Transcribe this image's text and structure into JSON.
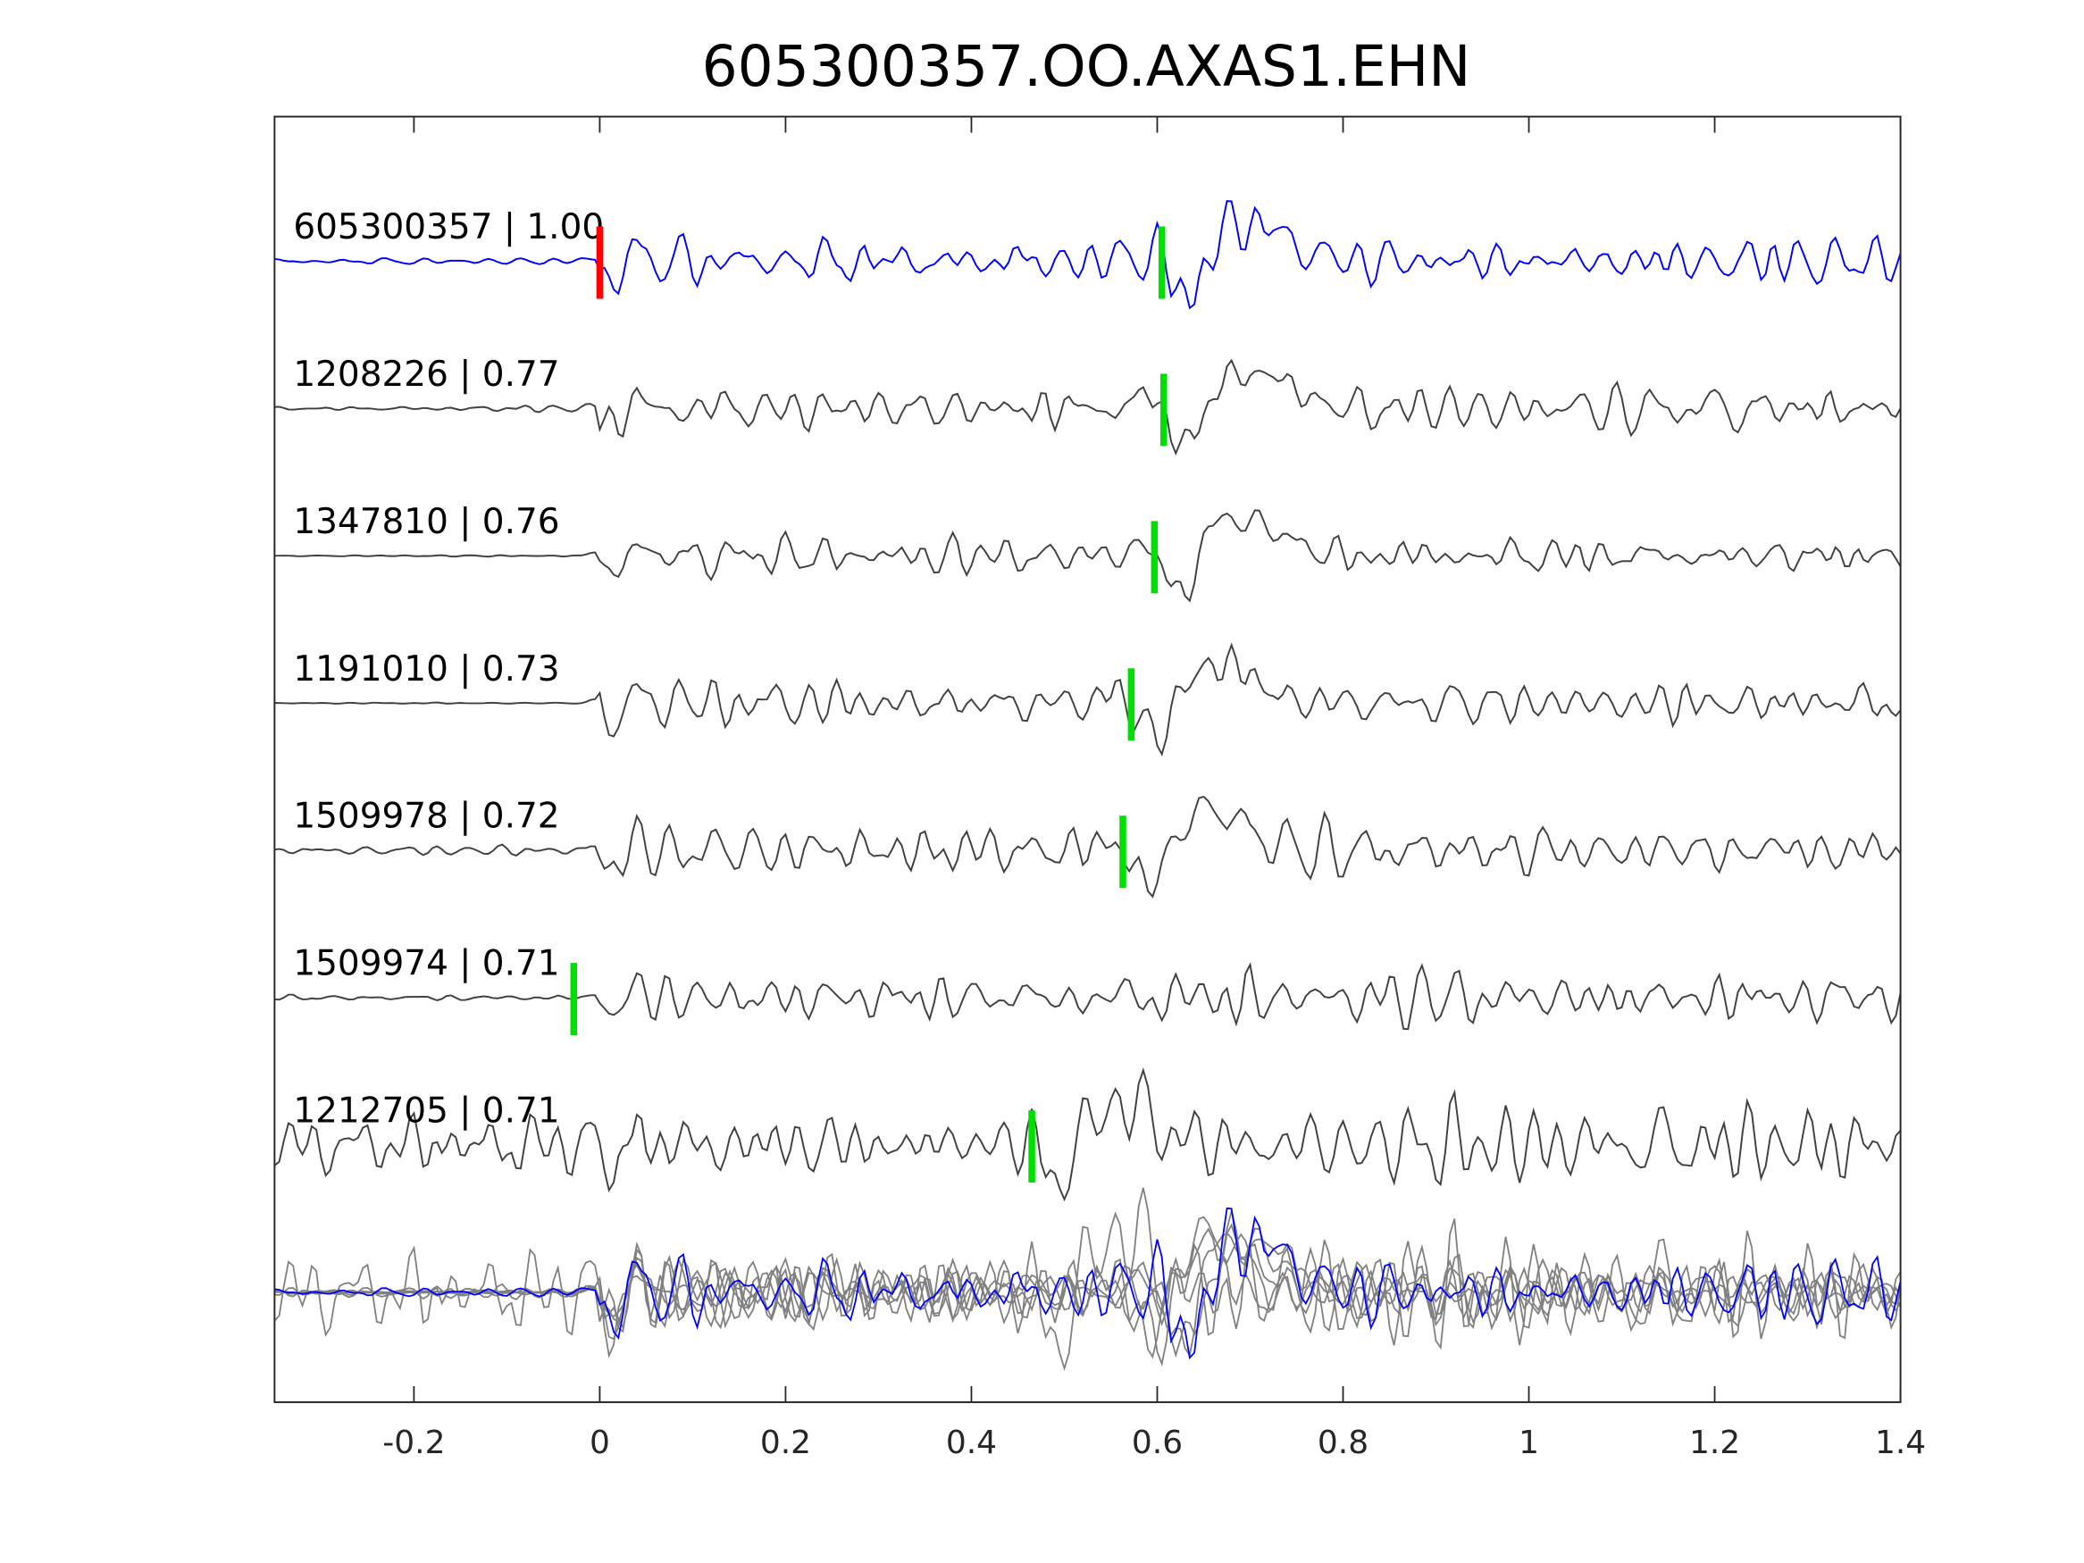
{
  "chart_data": {
    "type": "line",
    "title": "605300357.OO.AXAS1.EHN",
    "xlabel": "",
    "ylabel": "",
    "xlim": [
      -0.35,
      1.4
    ],
    "xticks": [
      -0.2,
      0,
      0.2,
      0.4,
      0.6,
      0.8,
      1,
      1.2,
      1.4
    ],
    "xtick_labels": [
      "-0.2",
      "0",
      "0.2",
      "0.4",
      "0.6",
      "0.8",
      "1",
      "1.2",
      "1.4"
    ],
    "grid": false,
    "traces": [
      {
        "label": "605300357 | 1.00",
        "color": "#0000ff",
        "pick_time": 0.0,
        "pick_color": "#ff0000",
        "second_pick": 0.605,
        "seed": 11,
        "noise": 0.25
      },
      {
        "label": "1208226 | 0.77",
        "color": "#404040",
        "pick_time": 0.607,
        "pick_color": "#00e000",
        "seed": 23,
        "noise": 0.2
      },
      {
        "label": "1347810 | 0.76",
        "color": "#404040",
        "pick_time": 0.597,
        "pick_color": "#00e000",
        "seed": 37,
        "noise": 0.05
      },
      {
        "label": "1191010 | 0.73",
        "color": "#404040",
        "pick_time": 0.572,
        "pick_color": "#00e000",
        "seed": 41,
        "noise": 0.05
      },
      {
        "label": "1509978 | 0.72",
        "color": "#404040",
        "pick_time": 0.563,
        "pick_color": "#00e000",
        "seed": 53,
        "noise": 0.3
      },
      {
        "label": "1509974 | 0.71",
        "color": "#404040",
        "pick_time": -0.028,
        "pick_color": "#00e000",
        "seed": 67,
        "noise": 0.25
      },
      {
        "label": "1212705 | 0.71",
        "color": "#404040",
        "pick_time": 0.465,
        "pick_color": "#00e000",
        "seed": 79,
        "noise": 1.0
      }
    ],
    "stack_color": "#808080"
  }
}
